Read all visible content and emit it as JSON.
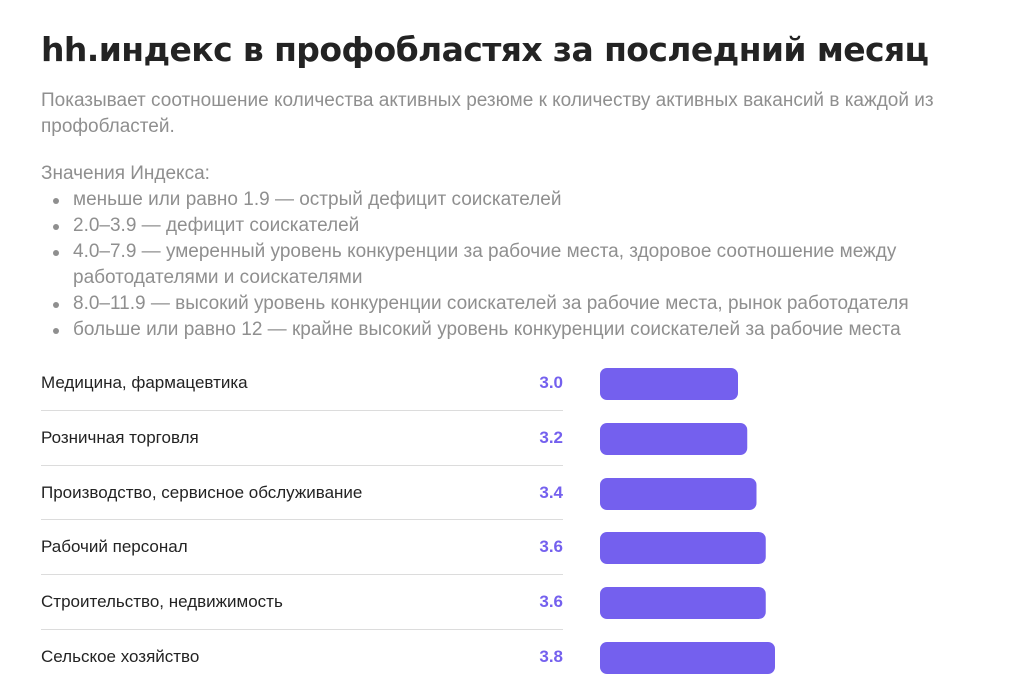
{
  "title": "hh.индекс в профобластях за последний месяц",
  "description": "Показывает соотношение количества активных резюме к количеству активных вакансий в каждой из профобластей.",
  "legend": {
    "heading": "Значения Индекса:",
    "items": [
      "меньше или равно 1.9 — острый дефицит соискателей",
      "2.0–3.9 — дефицит соискателей",
      "4.0–7.9 — умеренный уровень конкуренции за рабочие места, здоровое соотношение между работодателями и соискателями",
      "8.0–11.9 — высокий уровень конкуренции соискателей за рабочие места, рынок работодателя",
      "больше или равно 12 — крайне высокий уровень конкуренции соискателей за рабочие места"
    ]
  },
  "colors": {
    "bar": "#7460ee",
    "value": "#7460ee",
    "text": "#232323",
    "muted": "#8f8f8f",
    "divider": "#dcdcdc"
  },
  "chart_data": {
    "type": "bar",
    "orientation": "horizontal",
    "categories": [
      "Медицина, фармацевтика",
      "Розничная торговля",
      "Производство, сервисное обслуживание",
      "Рабочий персонал",
      "Строительство, недвижимость",
      "Сельское хозяйство"
    ],
    "values": [
      3.0,
      3.2,
      3.4,
      3.6,
      3.6,
      3.8
    ],
    "value_labels": [
      "3.0",
      "3.2",
      "3.4",
      "3.6",
      "3.6",
      "3.8"
    ],
    "xlim": [
      0,
      3.8
    ],
    "grid": false,
    "legend": "none"
  }
}
